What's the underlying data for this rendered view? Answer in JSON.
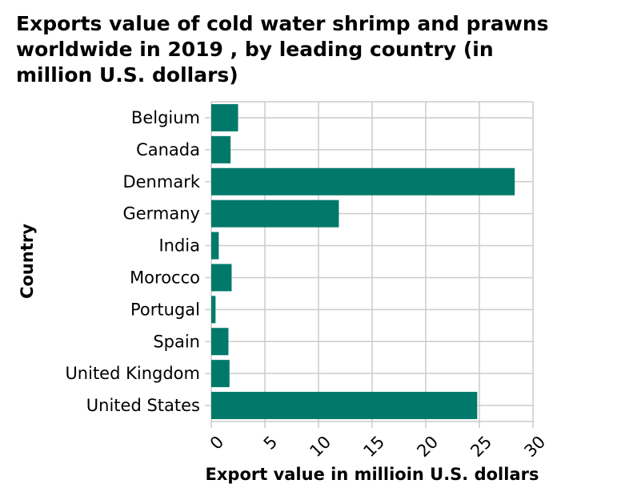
{
  "chart_data": {
    "type": "bar",
    "orientation": "horizontal",
    "title": "Exports value of cold water shrimp and prawns worldwide in 2019 , by leading country (in million U.S. dollars)",
    "title_lines": [
      "Exports value of cold water shrimp and prawns",
      "worldwide in 2019 , by leading country (in",
      "million U.S. dollars)"
    ],
    "categories": [
      "Belgium",
      "Canada",
      "Denmark",
      "Germany",
      "India",
      "Morocco",
      "Portugal",
      "Spain",
      "United Kingdom",
      "United States"
    ],
    "values": [
      2.5,
      1.8,
      28.3,
      11.9,
      0.7,
      1.9,
      0.4,
      1.6,
      1.7,
      24.8
    ],
    "xlabel": "Export value in millioin U.S. dollars",
    "ylabel": "Country",
    "xlim": [
      0,
      30
    ],
    "xticks": [
      0,
      5,
      10,
      15,
      20,
      25,
      30
    ],
    "grid": true,
    "bar_color": "#00796b",
    "grid_color": "#cccccc"
  }
}
